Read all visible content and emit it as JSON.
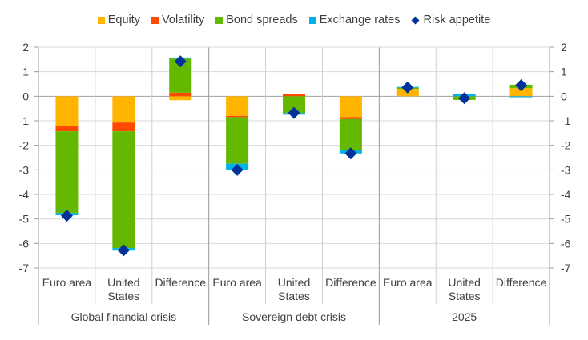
{
  "chart_data": {
    "type": "bar",
    "stacked": true,
    "title": "",
    "xlabel": "",
    "ylabel": "",
    "ylim": [
      -7,
      2
    ],
    "yticks": [
      2,
      1,
      0,
      -1,
      -2,
      -3,
      -4,
      -5,
      -6,
      -7
    ],
    "secondary_yticks": [
      2,
      1,
      0,
      -1,
      -2,
      -3,
      -4,
      -5,
      -6,
      -7
    ],
    "grid": true,
    "legend_position": "top-center",
    "groups": [
      {
        "label": "Global financial crisis",
        "categories": [
          "Euro area",
          "United States",
          "Difference"
        ]
      },
      {
        "label": "Sovereign debt crisis",
        "categories": [
          "Euro area",
          "United States",
          "Difference"
        ]
      },
      {
        "label": "2025",
        "categories": [
          "Euro area",
          "United States",
          "Difference"
        ]
      }
    ],
    "categories": [
      "Euro area",
      "United States",
      "Difference",
      "Euro area",
      "United States",
      "Difference",
      "Euro area",
      "United States",
      "Difference"
    ],
    "series": [
      {
        "name": "Equity",
        "color": "#FFB400",
        "values": [
          -1.2,
          -1.07,
          -0.16,
          -0.8,
          0.0,
          -0.85,
          0.3,
          0.0,
          0.33
        ]
      },
      {
        "name": "Volatility",
        "color": "#FF4B00",
        "values": [
          -0.23,
          -0.36,
          0.15,
          -0.05,
          0.08,
          -0.08,
          0.0,
          0.0,
          0.0
        ]
      },
      {
        "name": "Bond spreads",
        "color": "#65B800",
        "values": [
          -3.33,
          -4.76,
          1.38,
          -1.9,
          -0.68,
          -1.27,
          0.05,
          -0.15,
          0.14
        ]
      },
      {
        "name": "Exchange rates",
        "color": "#00B1EA",
        "values": [
          -0.09,
          -0.1,
          0.05,
          -0.25,
          -0.07,
          -0.13,
          0.03,
          0.08,
          -0.04
        ]
      }
    ],
    "markers": {
      "name": "Risk appetite",
      "color": "#003299",
      "values": [
        -4.87,
        -6.28,
        1.42,
        -3.0,
        -0.68,
        -2.33,
        0.36,
        -0.08,
        0.45
      ]
    }
  }
}
